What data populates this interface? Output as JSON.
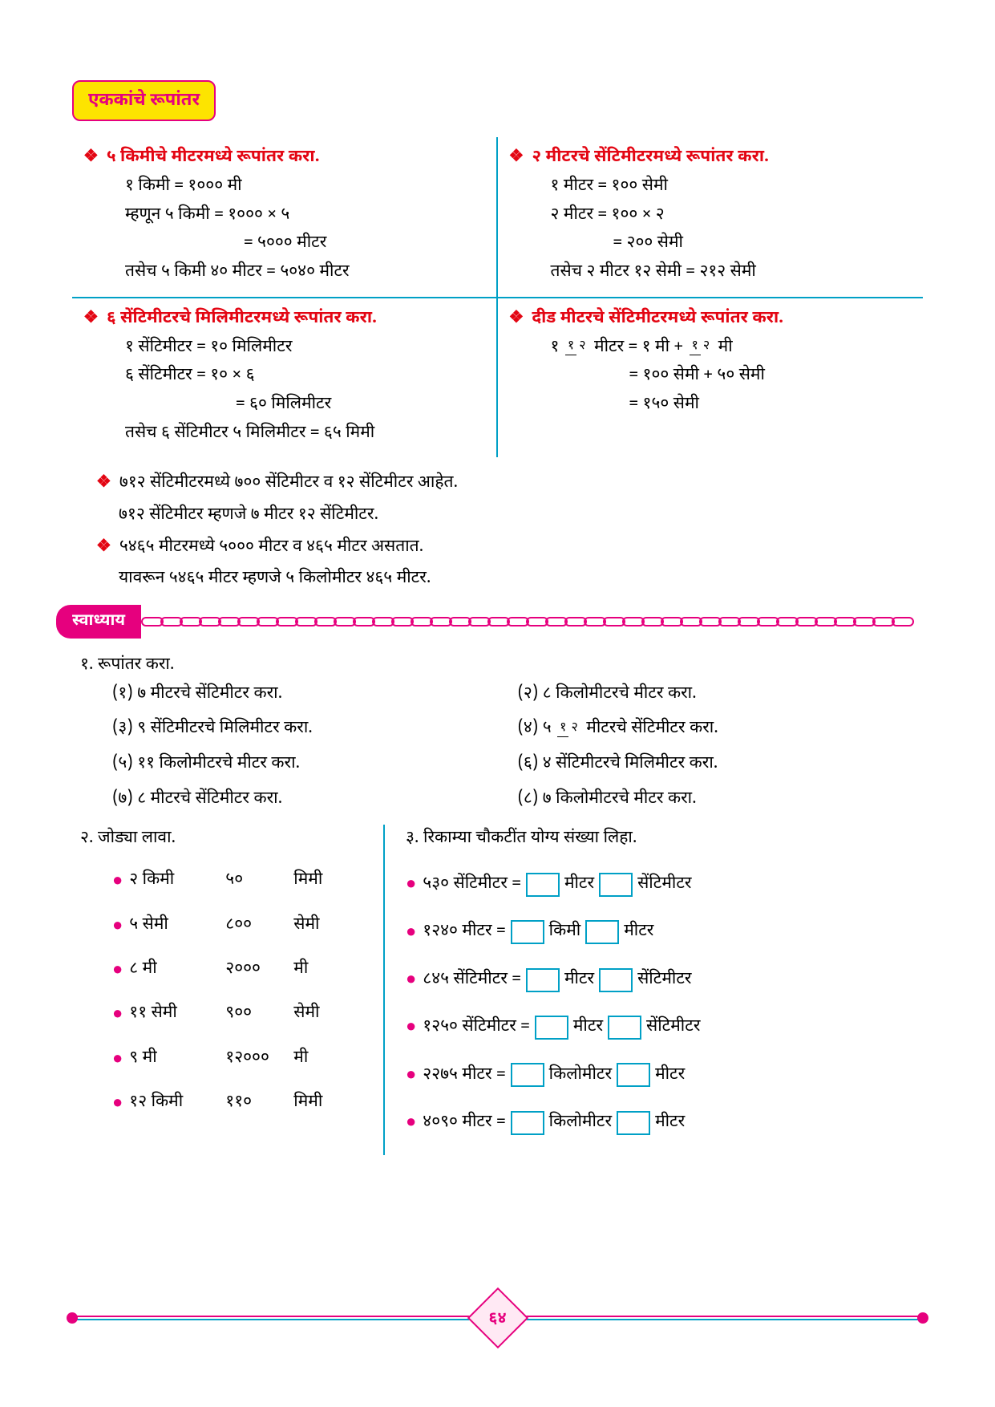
{
  "title": "एककांचे रूपांतर",
  "examples": {
    "e1": {
      "head": "५ किमीचे मीटरमध्ये रूपांतर करा.",
      "l1": "१ किमी = १००० मी",
      "l2": "म्हणून ५ किमी  = १००० × ५",
      "l3": "= ५००० मीटर",
      "l4": "तसेच ५ किमी ४० मीटर = ५०४० मीटर"
    },
    "e2": {
      "head": "२ मीटरचे सेंटिमीटरमध्ये रूपांतर करा.",
      "l1": "१ मीटर = १०० सेमी",
      "l2": "२ मीटर = १०० × २",
      "l3": "= २०० सेमी",
      "l4": "तसेच २ मीटर १२ सेमी = २१२ सेमी"
    },
    "e3": {
      "head": "६ सेंटिमीटरचे मिलिमीटरमध्ये रूपांतर करा.",
      "l1": "१ सेंटिमीटर = १० मिलिमीटर",
      "l2": "६ सेंटिमीटर    = १० × ६",
      "l3": "= ६० मिलिमीटर",
      "l4": "तसेच ६ सेंटिमीटर ५ मिलिमीटर = ६५ मिमी"
    },
    "e4": {
      "head": "दीड मीटरचे सेंटिमीटरमध्ये रूपांतर करा.",
      "pre": "१",
      "fn": "१",
      "fd": "२",
      "mid1": " मीटर  = १ मी + ",
      "fn2": "१",
      "fd2": "२",
      "mid2": " मी",
      "l2": "= १०० सेमी + ५० सेमी",
      "l3": "= १५० सेमी"
    }
  },
  "extra": {
    "r1": "७१२ सेंटिमीटरमध्ये ७०० सेंटिमीटर व १२ सेंटिमीटर आहेत.",
    "r2": "७१२ सेंटिमीटर म्हणजे ७ मीटर १२ सेंटिमीटर.",
    "r3": "५४६५ मीटरमध्ये ५००० मीटर व ४६५ मीटर असतात.",
    "r4": "यावरून ५४६५ मीटर म्हणजे ५ किलोमीटर ४६५ मीटर."
  },
  "swadhyay": "स्वाध्याय",
  "q1": {
    "head": "१.   रूपांतर करा.",
    "i1": "(१) ७ मीटरचे सेंटिमीटर करा.",
    "i2": "(२) ८ किलोमीटरचे मीटर करा.",
    "i3": "(३) ९ सेंटिमीटरचे मिलिमीटर करा.",
    "i4a": "(४) ५ ",
    "i4fn": "१",
    "i4fd": "२",
    "i4b": " मीटरचे सेंटिमीटर करा.",
    "i5": "(५) ११ किलोमीटरचे मीटर करा.",
    "i6": "(६) ४ सेंटिमीटरचे मिलिमीटर करा.",
    "i7": "(७) ८ मीटरचे सेंटिमीटर करा.",
    "i8": "(८) ७ किलोमीटरचे मीटर करा."
  },
  "q2": {
    "head": "२.   जोड्या लावा.",
    "rows": [
      {
        "a": "२ किमी",
        "b": "५०",
        "c": "मिमी"
      },
      {
        "a": "५ सेमी",
        "b": "८००",
        "c": "सेमी"
      },
      {
        "a": "८ मी",
        "b": "२०००",
        "c": "मी"
      },
      {
        "a": "११ सेमी",
        "b": "९००",
        "c": "सेमी"
      },
      {
        "a": "९ मी",
        "b": "१२०००",
        "c": "मी"
      },
      {
        "a": "१२ किमी",
        "b": "११०",
        "c": "मिमी"
      }
    ]
  },
  "q3": {
    "head": "३.  रिकाम्या चौकटींत योग्य संख्या लिहा.",
    "rows": [
      {
        "a": "५३० सेंटिमीटर =",
        "u1": "मीटर",
        "u2": "सेंटिमीटर"
      },
      {
        "a": "१२४० मीटर =",
        "u1": "किमी",
        "u2": "मीटर"
      },
      {
        "a": "८४५ सेंटिमीटर =",
        "u1": "मीटर",
        "u2": "सेंटिमीटर"
      },
      {
        "a": "१२५० सेंटिमीटर =",
        "u1": "मीटर",
        "u2": "सेंटिमीटर"
      },
      {
        "a": "२२७५ मीटर =",
        "u1": "किलोमीटर",
        "u2": "मीटर"
      },
      {
        "a": "४०९० मीटर =",
        "u1": "किलोमीटर",
        "u2": "मीटर"
      }
    ]
  },
  "pageNum": "६४",
  "colors": {
    "magenta": "#e6007e",
    "yellow": "#fde400",
    "red": "#e30613",
    "cyan": "#00a0c6"
  }
}
